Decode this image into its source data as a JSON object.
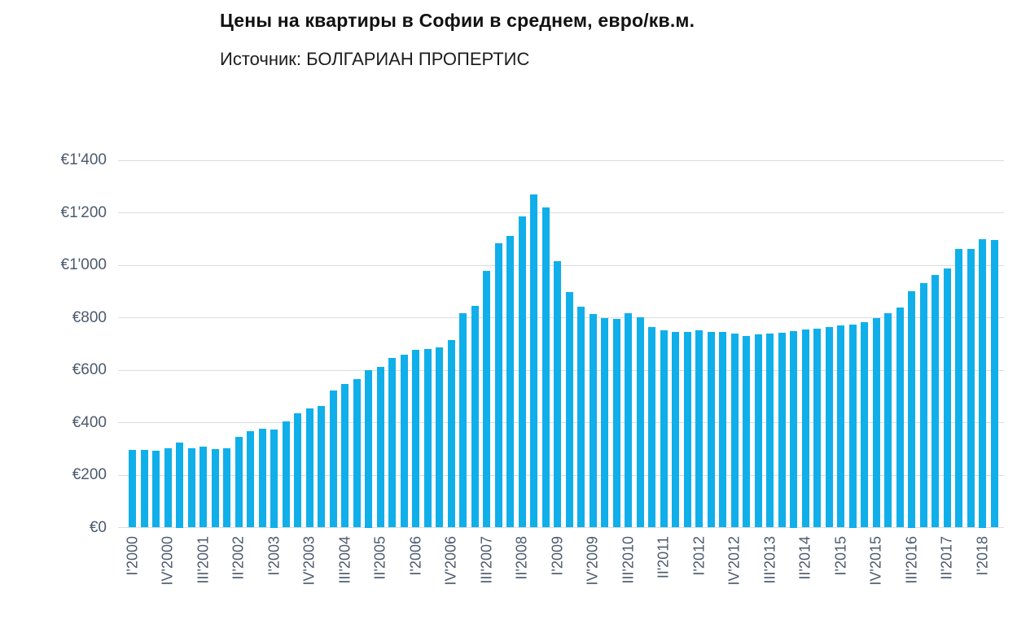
{
  "header": {
    "title": "Цены на квартиры в Софии в среднем, евро/кв.м.",
    "source": "Источник: БОЛГАРИАН ПРОПЕРТИС"
  },
  "chart_data": {
    "type": "bar",
    "title": "Цены на квартиры в Софии в среднем, евро/кв.м.",
    "subtitle": "Источник: БОЛГАРИАН ПРОПЕРТИС",
    "xlabel": "",
    "ylabel": "",
    "ylim": [
      0,
      1400
    ],
    "y_tick_step": 200,
    "y_tick_labels": [
      "€0",
      "€200",
      "€400",
      "€600",
      "€800",
      "€1'000",
      "€1'200",
      "€1'400"
    ],
    "x_tick_every": 3,
    "grid": "horizontal",
    "legend": "none",
    "bar_color": "#10afea",
    "axis_text_color": "#4c5a6e",
    "gridline_color": "#dcdcdc",
    "categories": [
      "I'2000",
      "II'2000",
      "III'2000",
      "IV'2000",
      "I'2001",
      "II'2001",
      "III'2001",
      "IV'2001",
      "I'2002",
      "II'2002",
      "III'2002",
      "IV'2002",
      "I'2003",
      "II'2003",
      "III'2003",
      "IV'2003",
      "I'2004",
      "II'2004",
      "III'2004",
      "IV'2004",
      "I'2005",
      "II'2005",
      "III'2005",
      "IV'2005",
      "I'2006",
      "II'2006",
      "III'2006",
      "IV'2006",
      "I'2007",
      "II'2007",
      "III'2007",
      "IV'2007",
      "I'2008",
      "II'2008",
      "III'2008",
      "IV'2008",
      "I'2009",
      "II'2009",
      "III'2009",
      "IV'2009",
      "I'2010",
      "II'2010",
      "III'2010",
      "IV'2010",
      "I'2011",
      "II'2011",
      "III'2011",
      "IV'2011",
      "I'2012",
      "II'2012",
      "III'2012",
      "IV'2012",
      "I'2013",
      "II'2013",
      "III'2013",
      "IV'2013",
      "I'2014",
      "II'2014",
      "III'2014",
      "IV'2014",
      "I'2015",
      "II'2015",
      "III'2015",
      "IV'2015",
      "I'2016",
      "II'2016",
      "III'2016",
      "IV'2016",
      "I'2017",
      "II'2017",
      "III'2017",
      "IV'2017",
      "I'2018",
      "II'2018"
    ],
    "values": [
      297,
      296,
      293,
      301,
      325,
      303,
      309,
      299,
      301,
      347,
      367,
      377,
      375,
      406,
      435,
      455,
      465,
      522,
      547,
      566,
      600,
      611,
      645,
      660,
      678,
      681,
      688,
      714,
      817,
      846,
      978,
      1085,
      1111,
      1186,
      1270,
      1221,
      1016,
      898,
      842,
      815,
      798,
      796,
      818,
      803,
      765,
      753,
      745,
      747,
      752,
      747,
      745,
      740,
      731,
      736,
      740,
      744,
      750,
      754,
      758,
      764,
      770,
      775,
      783,
      798,
      818,
      840,
      900,
      932,
      963,
      988,
      1062,
      1063,
      1100,
      1097
    ]
  }
}
